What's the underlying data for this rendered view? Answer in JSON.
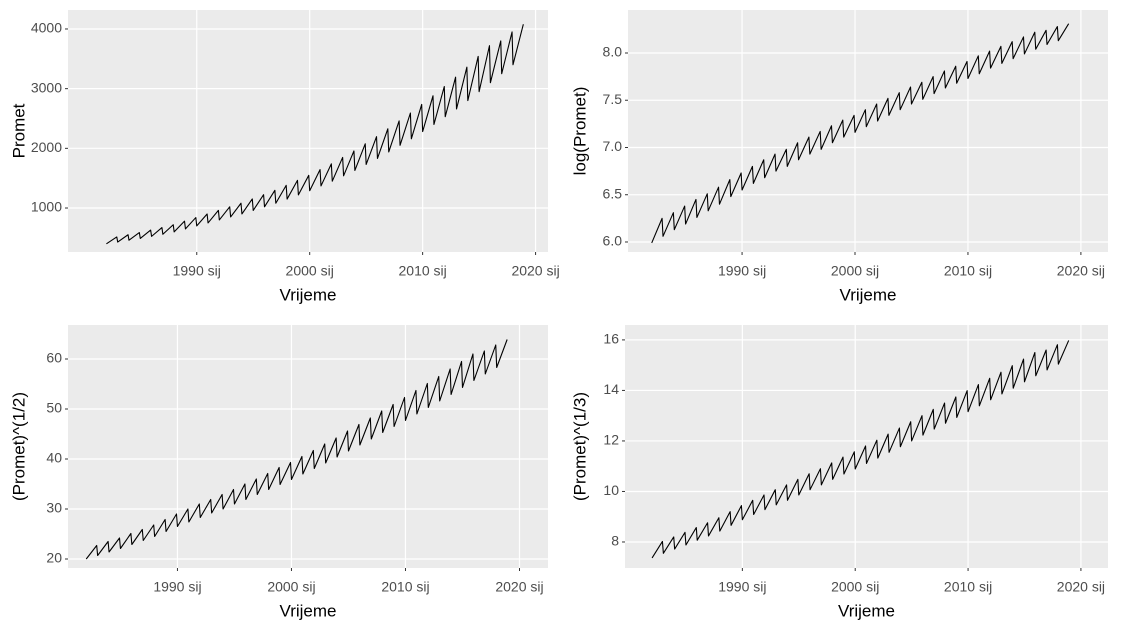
{
  "chart_data": [
    {
      "type": "line",
      "x_label": "Vrijeme",
      "y_label": "Promet",
      "color": "#000000",
      "grid": true,
      "xlim": [
        1978.6,
        2021.1
      ],
      "ylim": [
        263,
        4318
      ],
      "xticks": [
        {
          "value": 1990,
          "label": "1990 sij"
        },
        {
          "value": 2000,
          "label": "2000 sij"
        },
        {
          "value": 2010,
          "label": "2010 sij"
        },
        {
          "value": 2020,
          "label": "2020 sij"
        }
      ],
      "yticks": [
        1000,
        2000,
        3000,
        4000
      ],
      "x": [
        1982,
        1982.917,
        1983,
        1983.917,
        1984,
        1984.917,
        1985,
        1985.917,
        1986,
        1986.917,
        1987,
        1987.917,
        1988,
        1988.917,
        1989,
        1989.917,
        1990,
        1990.917,
        1991,
        1991.917,
        1992,
        1992.917,
        1993,
        1993.917,
        1994,
        1994.917,
        1995,
        1995.917,
        1996,
        1996.917,
        1997,
        1997.917,
        1998,
        1998.917,
        1999,
        1999.917,
        2000,
        2000.917,
        2001,
        2001.917,
        2002,
        2002.917,
        2003,
        2003.917,
        2004,
        2004.917,
        2005,
        2005.917,
        2006,
        2006.917,
        2007,
        2007.917,
        2008,
        2008.917,
        2009,
        2009.917,
        2010,
        2010.917,
        2011,
        2011.917,
        2012,
        2012.917,
        2013,
        2013.917,
        2014,
        2014.917,
        2015,
        2015.917,
        2016,
        2016.917,
        2017,
        2017.917,
        2018,
        2018.917
      ],
      "values": [
        400,
        516,
        430,
        552,
        460,
        588,
        490,
        630,
        525,
        672,
        560,
        720,
        600,
        780,
        650,
        840,
        700,
        900,
        750,
        960,
        800,
        1020,
        850,
        1080,
        900,
        1152,
        960,
        1224,
        1020,
        1296,
        1080,
        1380,
        1150,
        1464,
        1220,
        1548,
        1290,
        1644,
        1370,
        1740,
        1450,
        1848,
        1540,
        1956,
        1630,
        2076,
        1730,
        2196,
        1830,
        2328,
        1940,
        2460,
        2050,
        2592,
        2160,
        2736,
        2280,
        2880,
        2400,
        3036,
        2530,
        3192,
        2660,
        3360,
        2800,
        3540,
        2950,
        3720,
        3100,
        3800,
        3250,
        3950,
        3400,
        4080
      ]
    },
    {
      "type": "line",
      "x_label": "Vrijeme",
      "y_label": "log(Promet)",
      "color": "#000000",
      "grid": true,
      "xlim": [
        1979.9,
        2022.4
      ],
      "ylim": [
        5.894,
        8.455
      ],
      "xticks": [
        {
          "value": 1990,
          "label": "1990 sij"
        },
        {
          "value": 2000,
          "label": "2000 sij"
        },
        {
          "value": 2010,
          "label": "2010 sij"
        },
        {
          "value": 2020,
          "label": "2020 sij"
        }
      ],
      "yticks": [
        {
          "value": 6,
          "label": "6.0"
        },
        6.5,
        {
          "value": 7,
          "label": "7.0"
        },
        7.5,
        {
          "value": 8,
          "label": "8.0"
        }
      ],
      "x": [
        1982,
        1982.917,
        1983,
        1983.917,
        1984,
        1984.917,
        1985,
        1985.917,
        1986,
        1986.917,
        1987,
        1987.917,
        1988,
        1988.917,
        1989,
        1989.917,
        1990,
        1990.917,
        1991,
        1991.917,
        1992,
        1992.917,
        1993,
        1993.917,
        1994,
        1994.917,
        1995,
        1995.917,
        1996,
        1996.917,
        1997,
        1997.917,
        1998,
        1998.917,
        1999,
        1999.917,
        2000,
        2000.917,
        2001,
        2001.917,
        2002,
        2002.917,
        2003,
        2003.917,
        2004,
        2004.917,
        2005,
        2005.917,
        2006,
        2006.917,
        2007,
        2007.917,
        2008,
        2008.917,
        2009,
        2009.917,
        2010,
        2010.917,
        2011,
        2011.917,
        2012,
        2012.917,
        2013,
        2013.917,
        2014,
        2014.917,
        2015,
        2015.917,
        2016,
        2016.917,
        2017,
        2017.917,
        2018,
        2018.917
      ],
      "values": [
        5.99,
        6.25,
        6.06,
        6.31,
        6.13,
        6.38,
        6.19,
        6.45,
        6.26,
        6.51,
        6.33,
        6.58,
        6.4,
        6.66,
        6.48,
        6.73,
        6.55,
        6.8,
        6.62,
        6.87,
        6.68,
        6.93,
        6.75,
        6.98,
        6.8,
        7.05,
        6.87,
        7.11,
        6.93,
        7.17,
        6.98,
        7.23,
        7.05,
        7.29,
        7.11,
        7.34,
        7.16,
        7.4,
        7.22,
        7.46,
        7.28,
        7.52,
        7.34,
        7.58,
        7.4,
        7.64,
        7.46,
        7.69,
        7.51,
        7.75,
        7.57,
        7.81,
        7.63,
        7.86,
        7.68,
        7.91,
        7.73,
        7.97,
        7.78,
        8.02,
        7.84,
        8.07,
        7.89,
        8.12,
        7.94,
        8.17,
        7.99,
        8.22,
        8.04,
        8.24,
        8.09,
        8.28,
        8.13,
        8.31
      ]
    },
    {
      "type": "line",
      "x_label": "Vrijeme",
      "y_label": "(Promet)^(1/2)",
      "color": "#000000",
      "grid": true,
      "xlim": [
        1980.4,
        2022.5
      ],
      "ylim": [
        18.2,
        66.8
      ],
      "xticks": [
        {
          "value": 1990,
          "label": "1990 sij"
        },
        {
          "value": 2000,
          "label": "2000 sij"
        },
        {
          "value": 2010,
          "label": "2010 sij"
        },
        {
          "value": 2020,
          "label": "2020 sij"
        }
      ],
      "yticks": [
        20,
        30,
        40,
        50,
        60
      ],
      "x": [
        1982,
        1982.917,
        1983,
        1983.917,
        1984,
        1984.917,
        1985,
        1985.917,
        1986,
        1986.917,
        1987,
        1987.917,
        1988,
        1988.917,
        1989,
        1989.917,
        1990,
        1990.917,
        1991,
        1991.917,
        1992,
        1992.917,
        1993,
        1993.917,
        1994,
        1994.917,
        1995,
        1995.917,
        1996,
        1996.917,
        1997,
        1997.917,
        1998,
        1998.917,
        1999,
        1999.917,
        2000,
        2000.917,
        2001,
        2001.917,
        2002,
        2002.917,
        2003,
        2003.917,
        2004,
        2004.917,
        2005,
        2005.917,
        2006,
        2006.917,
        2007,
        2007.917,
        2008,
        2008.917,
        2009,
        2009.917,
        2010,
        2010.917,
        2011,
        2011.917,
        2012,
        2012.917,
        2013,
        2013.917,
        2014,
        2014.917,
        2015,
        2015.917,
        2016,
        2016.917,
        2017,
        2017.917,
        2018,
        2018.917
      ],
      "values": [
        20.0,
        22.7,
        20.7,
        23.5,
        21.4,
        24.2,
        22.1,
        25.1,
        22.9,
        25.9,
        23.7,
        26.8,
        24.5,
        27.9,
        25.5,
        29.0,
        26.5,
        30.0,
        27.4,
        31.0,
        28.3,
        31.9,
        29.2,
        32.9,
        30.0,
        33.9,
        31.0,
        35.0,
        31.9,
        36.0,
        32.9,
        37.1,
        33.9,
        38.3,
        34.9,
        39.3,
        35.9,
        40.5,
        37.0,
        41.7,
        38.1,
        43.0,
        39.2,
        44.2,
        40.4,
        45.6,
        41.6,
        46.9,
        42.8,
        48.2,
        44.0,
        49.6,
        45.3,
        50.9,
        46.5,
        52.3,
        47.7,
        53.7,
        49.0,
        55.1,
        50.3,
        56.5,
        51.6,
        58.0,
        52.9,
        59.5,
        54.3,
        61.0,
        55.7,
        61.6,
        57.0,
        62.8,
        58.3,
        63.9
      ]
    },
    {
      "type": "line",
      "x_label": "Vrijeme",
      "y_label": "(Promet)^(1/3)",
      "color": "#000000",
      "grid": true,
      "xlim": [
        1979.6,
        2022.4
      ],
      "ylim": [
        6.97,
        16.59
      ],
      "xticks": [
        {
          "value": 1990,
          "label": "1990 sij"
        },
        {
          "value": 2000,
          "label": "2000 sij"
        },
        {
          "value": 2010,
          "label": "2010 sij"
        },
        {
          "value": 2020,
          "label": "2020 sij"
        }
      ],
      "yticks": [
        8,
        10,
        12,
        14,
        16
      ],
      "x": [
        1982,
        1982.917,
        1983,
        1983.917,
        1984,
        1984.917,
        1985,
        1985.917,
        1986,
        1986.917,
        1987,
        1987.917,
        1988,
        1988.917,
        1989,
        1989.917,
        1990,
        1990.917,
        1991,
        1991.917,
        1992,
        1992.917,
        1993,
        1993.917,
        1994,
        1994.917,
        1995,
        1995.917,
        1996,
        1996.917,
        1997,
        1997.917,
        1998,
        1998.917,
        1999,
        1999.917,
        2000,
        2000.917,
        2001,
        2001.917,
        2002,
        2002.917,
        2003,
        2003.917,
        2004,
        2004.917,
        2005,
        2005.917,
        2006,
        2006.917,
        2007,
        2007.917,
        2008,
        2008.917,
        2009,
        2009.917,
        2010,
        2010.917,
        2011,
        2011.917,
        2012,
        2012.917,
        2013,
        2013.917,
        2014,
        2014.917,
        2015,
        2015.917,
        2016,
        2016.917,
        2017,
        2017.917,
        2018,
        2018.917
      ],
      "values": [
        7.37,
        8.02,
        7.55,
        8.2,
        7.72,
        8.38,
        7.88,
        8.57,
        8.07,
        8.76,
        8.24,
        8.96,
        8.43,
        9.2,
        8.66,
        9.44,
        8.88,
        9.65,
        9.09,
        9.86,
        9.28,
        10.07,
        9.47,
        10.26,
        9.65,
        10.48,
        9.86,
        10.7,
        10.07,
        10.9,
        10.26,
        11.13,
        10.48,
        11.36,
        10.69,
        11.57,
        10.89,
        11.8,
        11.11,
        12.03,
        11.32,
        12.27,
        11.55,
        12.51,
        11.77,
        12.76,
        12.0,
        13.0,
        12.23,
        13.25,
        12.47,
        13.5,
        12.7,
        13.74,
        12.93,
        13.99,
        13.16,
        14.23,
        13.39,
        14.48,
        13.63,
        14.72,
        13.86,
        14.98,
        14.09,
        15.24,
        14.34,
        15.5,
        14.58,
        15.6,
        14.81,
        15.81,
        15.04,
        15.98
      ]
    }
  ]
}
